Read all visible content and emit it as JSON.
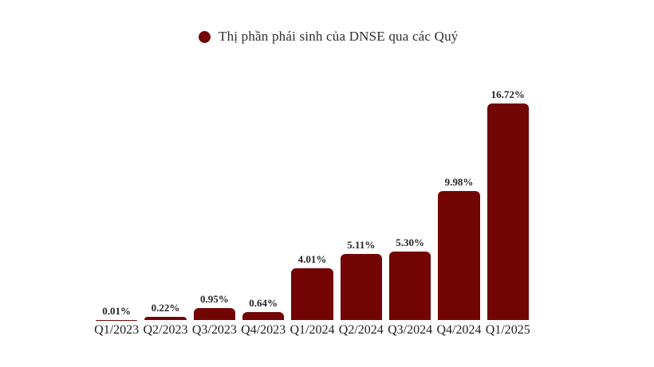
{
  "chart_data": {
    "type": "bar",
    "title": "Thị phần phái sinh của DNSE qua các Quý",
    "series_name": "Thị phần phái sinh của DNSE qua các Quý",
    "categories": [
      "Q1/2023",
      "Q2/2023",
      "Q3/2023",
      "Q4/2023",
      "Q1/2024",
      "Q2/2024",
      "Q3/2024",
      "Q4/2024",
      "Q1/2025"
    ],
    "values": [
      0.01,
      0.22,
      0.95,
      0.64,
      4.01,
      5.11,
      5.3,
      9.98,
      16.72
    ],
    "value_labels": [
      "0.01%",
      "0.22%",
      "0.95%",
      "0.64%",
      "4.01%",
      "5.11%",
      "5.30%",
      "9.98%",
      "16.72%"
    ],
    "xlabel": "",
    "ylabel": "",
    "ylim": [
      0,
      17.5
    ],
    "grid": false,
    "axes_visible": false,
    "legend_position": "top-center",
    "bar_color": "#730505",
    "marker_color": "#730505",
    "value_label_color": "#262626",
    "axis_label_color": "#1f1f1f",
    "background": "#ffffff"
  }
}
